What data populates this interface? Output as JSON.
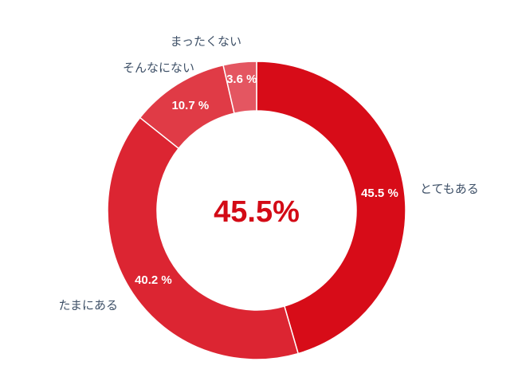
{
  "chart_data": {
    "type": "pie",
    "donut": true,
    "center_label": "45.5%",
    "center_label_color": "#d30b16",
    "categories": [
      "とてもある",
      "たまにある",
      "そんなにない",
      "まったくない"
    ],
    "values": [
      45.5,
      40.2,
      10.7,
      3.6
    ],
    "data_labels": [
      "45.5 %",
      "40.2 %",
      "10.7 %",
      "3.6 %"
    ],
    "colors": [
      "#d70c18",
      "#dc2532",
      "#e03b46",
      "#e45661"
    ],
    "legend": "none"
  }
}
